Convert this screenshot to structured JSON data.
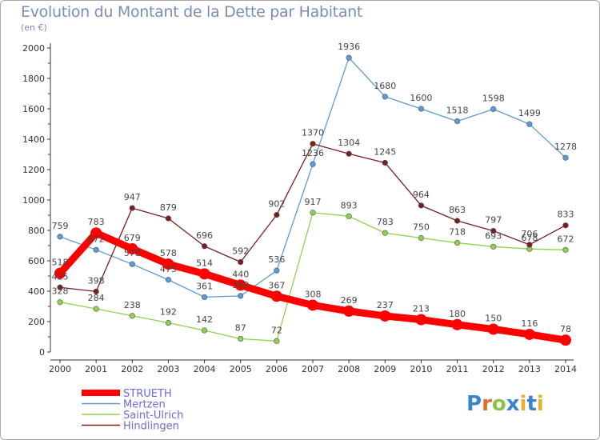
{
  "chart_data": {
    "type": "line",
    "title": "Evolution du Montant de la Dette par Habitant",
    "subtitle": "(en €)",
    "categories": [
      "2000",
      "2001",
      "2002",
      "2003",
      "2004",
      "2005",
      "2006",
      "2007",
      "2008",
      "2009",
      "2010",
      "2011",
      "2012",
      "2013",
      "2014"
    ],
    "ylim": [
      0,
      2000
    ],
    "yticks": [
      0,
      200,
      400,
      600,
      800,
      1000,
      1200,
      1400,
      1600,
      1800,
      2000
    ],
    "grid": false,
    "legend_position": "bottom-left",
    "series": [
      {
        "name": "STRUETH",
        "color": "#ff0000",
        "highlight": true,
        "values": [
          518,
          783,
          679,
          578,
          514,
          440,
          367,
          308,
          269,
          237,
          213,
          180,
          150,
          116,
          78
        ]
      },
      {
        "name": "Mertzen",
        "color": "#5b9bd5",
        "highlight": false,
        "values": [
          759,
          672,
          578,
          475,
          361,
          369,
          536,
          1236,
          1936,
          1680,
          1600,
          1518,
          1598,
          1499,
          1278
        ]
      },
      {
        "name": "Saint-Ulrich",
        "color": "#8fd14f",
        "highlight": false,
        "values": [
          328,
          284,
          238,
          192,
          142,
          87,
          72,
          917,
          893,
          783,
          750,
          718,
          693,
          678,
          672
        ]
      },
      {
        "name": "Hindlingen",
        "color": "#7b1e1e",
        "highlight": false,
        "values": [
          425,
          398,
          947,
          879,
          696,
          592,
          902,
          1370,
          1304,
          1245,
          964,
          863,
          797,
          706,
          833
        ]
      }
    ]
  },
  "logo": {
    "text": "Proxiti"
  }
}
